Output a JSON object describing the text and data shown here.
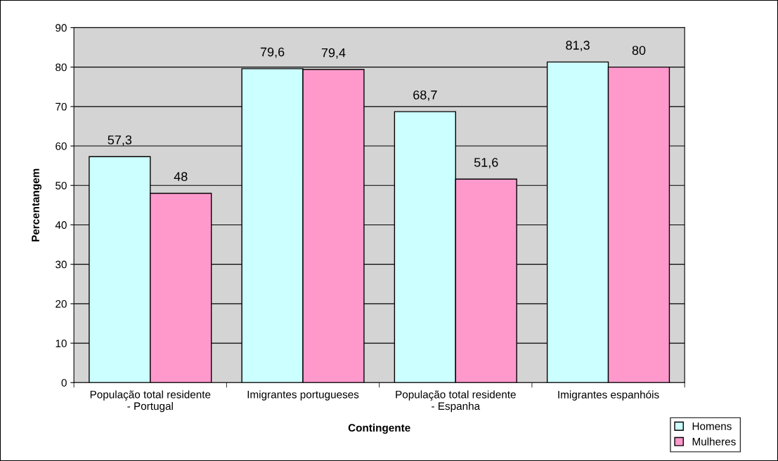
{
  "chart_data": {
    "type": "bar",
    "xlabel": "Contingente",
    "ylabel": "Percentangem",
    "categories": [
      "População total residente\n- Portugal",
      "Imigrantes portugueses",
      "População total residente\n- Espanha",
      "Imigrantes espanhóis"
    ],
    "series": [
      {
        "name": "Homens",
        "color": "#ccffff",
        "values": [
          57.3,
          79.6,
          68.7,
          81.3
        ],
        "value_labels": [
          "57,3",
          "79,6",
          "68,7",
          "81,3"
        ]
      },
      {
        "name": "Mulheres",
        "color": "#ff99cc",
        "values": [
          48,
          79.4,
          51.6,
          80
        ],
        "value_labels": [
          "48",
          "79,4",
          "51,6",
          "80"
        ]
      }
    ],
    "ylim": [
      0,
      90
    ],
    "yticks": [
      0,
      10,
      20,
      30,
      40,
      50,
      60,
      70,
      80,
      90
    ],
    "grid": "y",
    "legend": "bottom right"
  }
}
